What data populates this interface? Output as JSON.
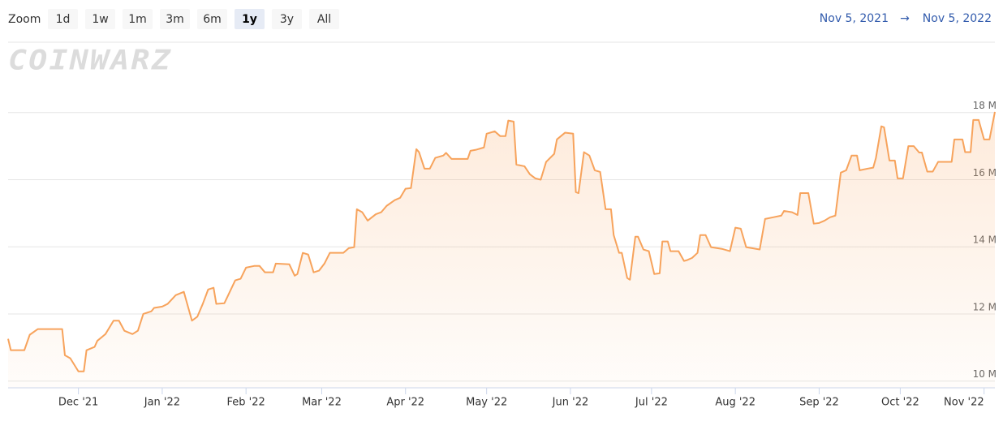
{
  "toolbar": {
    "zoom_label": "Zoom",
    "buttons": [
      "1d",
      "1w",
      "1m",
      "3m",
      "6m",
      "1y",
      "3y",
      "All"
    ],
    "selected": 5,
    "range_from": "Nov 5, 2021",
    "range_arrow": "→",
    "range_to": "Nov 5, 2022"
  },
  "watermark": "COINWARZ",
  "chart_data": {
    "type": "area",
    "color": "#f7a35c",
    "x": [
      0,
      1,
      6,
      8,
      11,
      20,
      21,
      23,
      26,
      28,
      29,
      32,
      33,
      36,
      39,
      41,
      43,
      46,
      48,
      50,
      53,
      54,
      57,
      59,
      62,
      65,
      66,
      68,
      70,
      72,
      74,
      76,
      77,
      80,
      81,
      84,
      86,
      88,
      91,
      93,
      95,
      98,
      99,
      104,
      106,
      107,
      109,
      111,
      113,
      115,
      117,
      119,
      124,
      126,
      128,
      129,
      131,
      133,
      136,
      138,
      140,
      143,
      145,
      147,
      149,
      151,
      152,
      154,
      156,
      158,
      161,
      162,
      164,
      170,
      171,
      173,
      176,
      177,
      180,
      182,
      184,
      185,
      187,
      188,
      191,
      193,
      195,
      197,
      199,
      202,
      203,
      206,
      209,
      210,
      211,
      213,
      215,
      217,
      219,
      221,
      223,
      224,
      226,
      227,
      229,
      230,
      232,
      233,
      235,
      237,
      239,
      241,
      242,
      244,
      245,
      248,
      250,
      251,
      253,
      255,
      256,
      258,
      260,
      264,
      267,
      269,
      271,
      273,
      278,
      280,
      283,
      286,
      287,
      290,
      292,
      293,
      296,
      298,
      300,
      302,
      304,
      306,
      308,
      310,
      312,
      314,
      315,
      318,
      320,
      321,
      323,
      324,
      326,
      328,
      329,
      331,
      333,
      335,
      337,
      338,
      340,
      342,
      344,
      349,
      350,
      353,
      354,
      356,
      357,
      359,
      361,
      363,
      365
    ],
    "values": [
      11.26,
      10.92,
      10.92,
      11.38,
      11.55,
      11.55,
      10.77,
      10.68,
      10.29,
      10.29,
      10.92,
      11.02,
      11.2,
      11.4,
      11.8,
      11.8,
      11.5,
      11.4,
      11.5,
      12.0,
      12.08,
      12.18,
      12.22,
      12.3,
      12.56,
      12.66,
      12.37,
      11.8,
      11.92,
      12.3,
      12.73,
      12.78,
      12.3,
      12.32,
      12.49,
      13.0,
      13.05,
      13.38,
      13.43,
      13.43,
      13.24,
      13.24,
      13.5,
      13.48,
      13.14,
      13.19,
      13.82,
      13.77,
      13.24,
      13.29,
      13.5,
      13.82,
      13.82,
      13.96,
      13.99,
      15.12,
      15.03,
      14.78,
      14.97,
      15.03,
      15.22,
      15.39,
      15.46,
      15.73,
      15.75,
      16.91,
      16.82,
      16.33,
      16.33,
      16.65,
      16.72,
      16.8,
      16.62,
      16.62,
      16.86,
      16.89,
      16.96,
      17.37,
      17.44,
      17.3,
      17.3,
      17.76,
      17.73,
      16.45,
      16.4,
      16.16,
      16.04,
      16.0,
      16.53,
      16.77,
      17.2,
      17.4,
      17.37,
      15.63,
      15.6,
      16.82,
      16.72,
      16.28,
      16.23,
      15.12,
      15.12,
      14.35,
      13.82,
      13.82,
      13.07,
      13.02,
      14.3,
      14.3,
      13.92,
      13.87,
      13.19,
      13.21,
      14.16,
      14.16,
      13.87,
      13.87,
      13.58,
      13.6,
      13.67,
      13.82,
      14.35,
      14.35,
      13.99,
      13.94,
      13.87,
      14.57,
      14.54,
      13.99,
      13.92,
      14.83,
      14.88,
      14.93,
      15.07,
      15.03,
      14.95,
      15.6,
      15.6,
      14.69,
      14.71,
      14.78,
      14.88,
      14.93,
      16.21,
      16.28,
      16.72,
      16.72,
      16.28,
      16.33,
      16.36,
      16.65,
      17.59,
      17.56,
      16.57,
      16.57,
      16.04,
      16.04,
      17.0,
      17.0,
      16.81,
      16.81,
      16.24,
      16.24,
      16.53,
      16.53,
      17.2,
      17.2,
      16.82,
      16.82,
      17.78,
      17.78,
      17.2,
      17.2,
      18.02
    ],
    "xlim": [
      0,
      365
    ],
    "xticks": [
      {
        "value": 26,
        "label": "Dec '21"
      },
      {
        "value": 57,
        "label": "Jan '22"
      },
      {
        "value": 88,
        "label": "Feb '22"
      },
      {
        "value": 116,
        "label": "Mar '22"
      },
      {
        "value": 147,
        "label": "Apr '22"
      },
      {
        "value": 177,
        "label": "May '22"
      },
      {
        "value": 208,
        "label": "Jun '22"
      },
      {
        "value": 238,
        "label": "Jul '22"
      },
      {
        "value": 269,
        "label": "Aug '22"
      },
      {
        "value": 300,
        "label": "Sep '22"
      },
      {
        "value": 330,
        "label": "Oct '22"
      },
      {
        "value": 361,
        "label": "Nov '22"
      }
    ],
    "ylim": [
      9.8,
      18.9
    ],
    "yticks": [
      {
        "value": 10,
        "label": "10 M"
      },
      {
        "value": 12,
        "label": "12 M"
      },
      {
        "value": 14,
        "label": "14 M"
      },
      {
        "value": 16,
        "label": "16 M"
      },
      {
        "value": 18,
        "label": "18 M"
      }
    ],
    "grid": true
  }
}
